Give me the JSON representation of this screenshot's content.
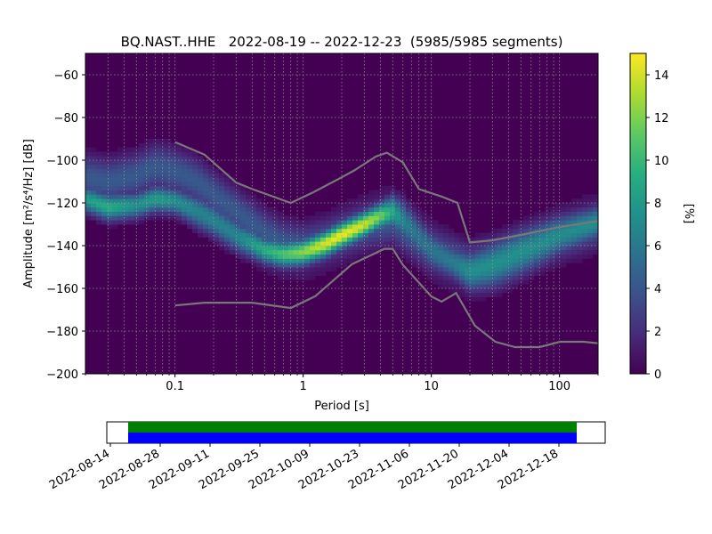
{
  "title": "BQ.NAST..HHE   2022-08-19 -- 2022-12-23  (5985/5985 segments)",
  "chart_data": [
    {
      "type": "heatmap",
      "title": "BQ.NAST..HHE   2022-08-19 -- 2022-12-23  (5985/5985 segments)",
      "xlabel": "Period [s]",
      "ylabel": "Amplitude [m²/s⁴/Hz] [dB]",
      "x_scale": "log",
      "xlim": [
        0.02,
        200
      ],
      "ylim": [
        -200,
        -50
      ],
      "grid": true,
      "x_ticks": [
        0.1,
        1,
        10,
        100
      ],
      "x_tick_labels": [
        "0.1",
        "1",
        "10",
        "100"
      ],
      "y_ticks": [
        -60,
        -80,
        -100,
        -120,
        -140,
        -160,
        -180,
        -200
      ],
      "y_tick_labels": [
        "−60",
        "−80",
        "−100",
        "−120",
        "−140",
        "−160",
        "−180",
        "−200"
      ],
      "colorbar": {
        "label": "[%]",
        "range": [
          0,
          15
        ],
        "ticks": [
          0,
          2,
          4,
          6,
          8,
          10,
          12,
          14
        ],
        "tick_labels": [
          "0",
          "2",
          "4",
          "6",
          "8",
          "10",
          "12",
          "14"
        ],
        "colormap": "viridis"
      },
      "ridge": {
        "x": [
          0.02,
          0.03,
          0.05,
          0.07,
          0.1,
          0.15,
          0.2,
          0.3,
          0.5,
          0.7,
          1.0,
          1.5,
          2.0,
          3.0,
          4.0,
          5.0,
          6.0,
          8.0,
          10,
          15,
          20,
          30,
          50,
          100,
          200
        ],
        "y": [
          -118,
          -122,
          -121,
          -118,
          -119,
          -124,
          -128,
          -135,
          -142,
          -144,
          -143,
          -139,
          -135,
          -130,
          -126,
          -124,
          -128,
          -136,
          -142,
          -148,
          -152,
          -149,
          -143,
          -135,
          -129
        ],
        "width_db": [
          4,
          4,
          4,
          4,
          4,
          5,
          5,
          5,
          4,
          4,
          4,
          4,
          4,
          4,
          4,
          5,
          6,
          6,
          6,
          5,
          6,
          7,
          7,
          6,
          5
        ],
        "intensity": [
          0.55,
          0.62,
          0.5,
          0.55,
          0.5,
          0.45,
          0.45,
          0.45,
          0.62,
          0.72,
          0.82,
          0.95,
          0.98,
          0.92,
          0.78,
          0.6,
          0.45,
          0.38,
          0.38,
          0.42,
          0.5,
          0.5,
          0.5,
          0.48,
          0.5
        ]
      },
      "upper_band": {
        "x": [
          0.02,
          0.03,
          0.05,
          0.07,
          0.1,
          0.15,
          0.2,
          0.3,
          0.5,
          0.7,
          1.0,
          1.5,
          2.0,
          3.0,
          5.0,
          7.0,
          10,
          20,
          50,
          100,
          200
        ],
        "y": [
          -108,
          -110,
          -107,
          -103,
          -105,
          -110,
          -116,
          -124,
          -134,
          -139,
          -141,
          -138,
          -135,
          -131,
          -128,
          -135,
          -142,
          -150,
          -142,
          -136,
          -130
        ],
        "intensity": 0.28
      },
      "reference_curves": [
        {
          "x": [
            0.1,
            0.17,
            0.3,
            0.4,
            0.8,
            1.2,
            2.0,
            2.5,
            3.7,
            4.5,
            6.0,
            8.0,
            12,
            16,
            20,
            30,
            50,
            100,
            200
          ],
          "y": [
            -91.5,
            -97.4,
            -110.5,
            -113.5,
            -120.0,
            -115.0,
            -108.0,
            -104.8,
            -98.2,
            -96.5,
            -101.0,
            -113.5,
            -117.0,
            -120.0,
            -138.5,
            -137.5,
            -135.0,
            -131.3,
            -128.5
          ]
        },
        {
          "x": [
            0.1,
            0.17,
            0.4,
            0.8,
            1.24,
            2.4,
            4.3,
            5.0,
            6.0,
            10,
            12,
            15.6,
            21.9,
            31.6,
            45,
            70,
            101,
            154,
            200
          ],
          "y": [
            -168.0,
            -166.7,
            -166.7,
            -169.2,
            -163.7,
            -148.7,
            -141.5,
            -141.5,
            -149.0,
            -163.8,
            -166.2,
            -162.2,
            -177.5,
            -185.0,
            -187.5,
            -187.5,
            -185.0,
            -185.0,
            -185.7
          ]
        }
      ]
    },
    {
      "type": "timeline",
      "x_tick_labels": [
        "2022-08-14",
        "2022-08-28",
        "2022-09-11",
        "2022-09-25",
        "2022-10-09",
        "2022-10-23",
        "2022-11-06",
        "2022-11-20",
        "2022-12-04",
        "2022-12-18"
      ],
      "xlim": [
        "2022-08-13",
        "2022-12-31"
      ],
      "data_start": "2022-08-19",
      "data_end": "2022-12-23",
      "rows": [
        {
          "color": "#0000ff",
          "start": "2022-08-19",
          "end": "2022-12-23"
        },
        {
          "color": "#008000",
          "start": "2022-08-19",
          "end": "2022-12-23"
        }
      ]
    }
  ]
}
